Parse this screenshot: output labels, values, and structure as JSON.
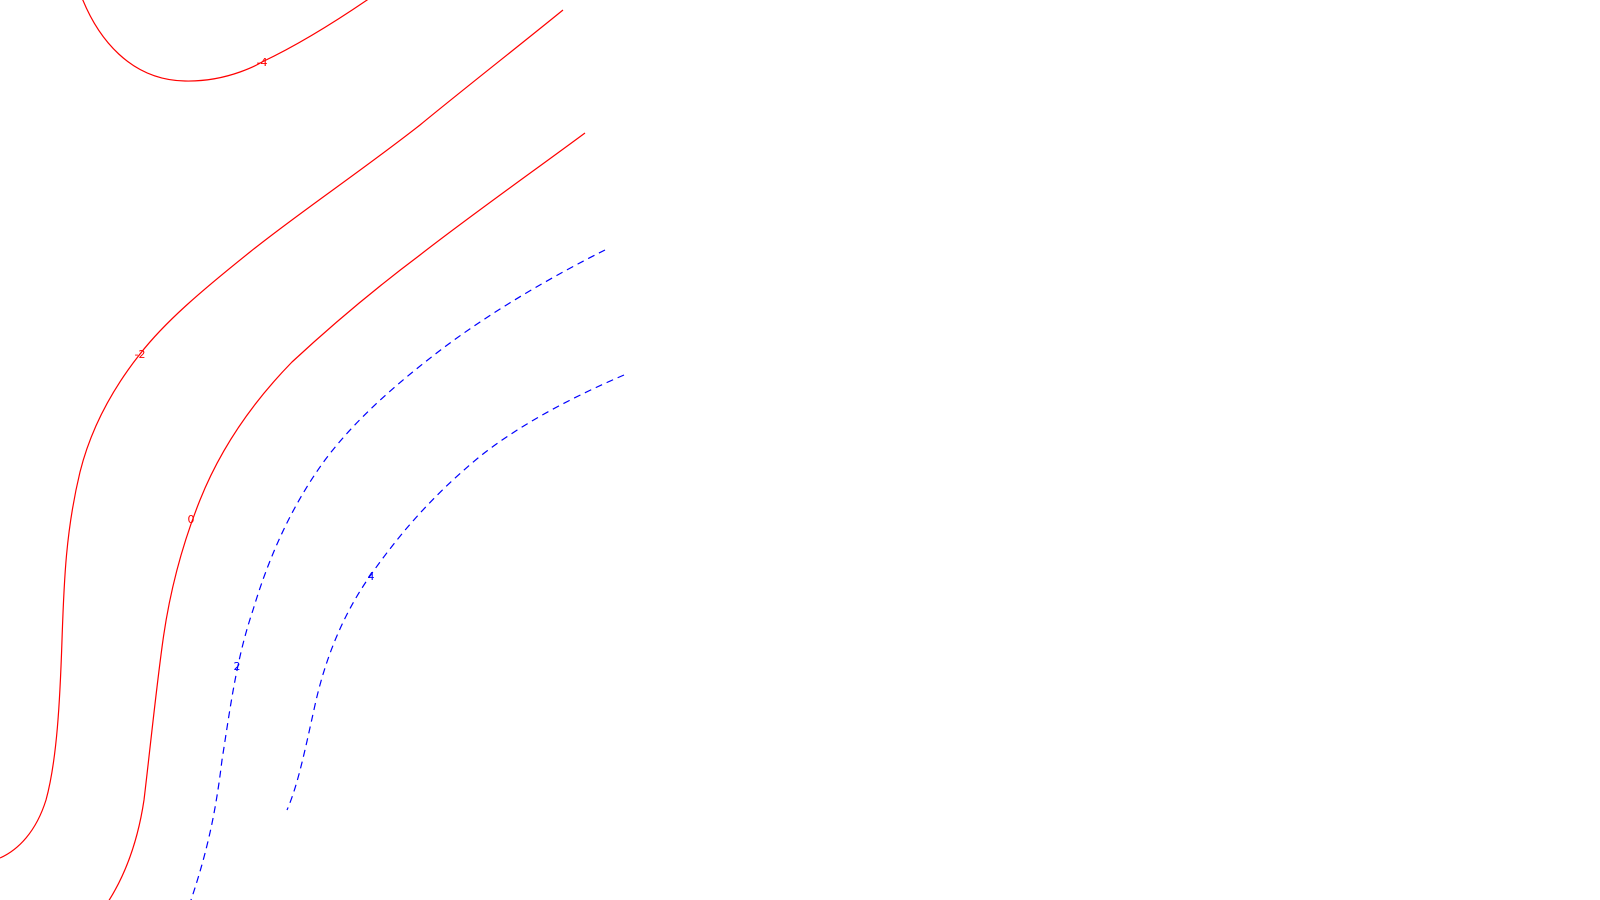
{
  "chart_data": {
    "type": "contour",
    "title": "",
    "xlabel": "",
    "ylabel": "",
    "grid": false,
    "negative_style": "solid",
    "positive_style": "dashed",
    "colors": {
      "negative": "#ff0000",
      "positive": "#0000ff",
      "background": "#ffffff"
    },
    "levels": [
      {
        "level": -4,
        "label": "-4",
        "sign": "negative"
      },
      {
        "level": -2,
        "label": "-2",
        "sign": "negative"
      },
      {
        "level": 0,
        "label": "0",
        "sign": "negative"
      },
      {
        "level": 2,
        "label": "2",
        "sign": "positive"
      },
      {
        "level": 4,
        "label": "4",
        "sign": "positive"
      }
    ]
  }
}
